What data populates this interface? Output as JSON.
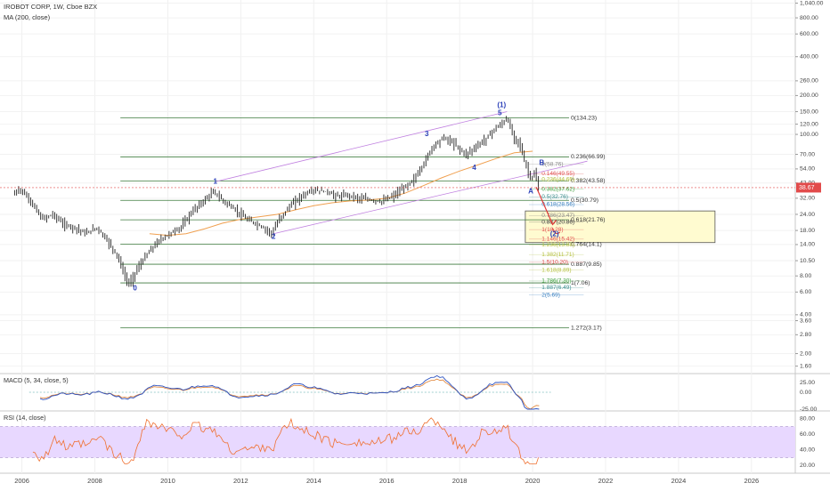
{
  "header": {
    "symbol_line": "IROBOT CORP, 1W, Cboe BZX",
    "ma_line": "MA (200, close)"
  },
  "price_axis": {
    "ticks": [
      "1,040.00",
      "800.00",
      "600.00",
      "400.00",
      "260.00",
      "200.00",
      "150.00",
      "120.00",
      "100.00",
      "70.00",
      "54.00",
      "42.00",
      "32.00",
      "24.00",
      "18.00",
      "14.00",
      "10.50",
      "8.00",
      "6.00",
      "4.00",
      "3.60",
      "2.80",
      "2.00",
      "1.60"
    ],
    "last_price_label": "38.67",
    "last_price": 38.67
  },
  "time_axis": {
    "labels": [
      "2006",
      "2008",
      "2010",
      "2012",
      "2014",
      "2016",
      "2018",
      "2020",
      "2022",
      "2024",
      "2026"
    ]
  },
  "macd": {
    "label": "MACD (5, 34, close, 5)",
    "ticks": [
      "25.00",
      "0.00",
      "-25.00"
    ]
  },
  "rsi": {
    "label": "RSI (14, close)",
    "ticks": [
      "80.00",
      "60.00",
      "40.00",
      "20.00"
    ]
  },
  "chart_data": {
    "type": "line",
    "price_scale": "log",
    "ylim": [
      1.4,
      1100
    ],
    "xlim": [
      2005.4,
      2027.2
    ],
    "series": [
      {
        "name": "Price",
        "x": [
          2005.8,
          2006.0,
          2006.3,
          2006.6,
          2006.9,
          2007.2,
          2007.5,
          2007.8,
          2008.1,
          2008.4,
          2008.7,
          2008.9,
          2009.0,
          2009.2,
          2009.5,
          2009.8,
          2010.1,
          2010.4,
          2010.7,
          2011.0,
          2011.3,
          2011.6,
          2011.9,
          2012.2,
          2012.5,
          2012.8,
          2012.9,
          2013.1,
          2013.4,
          2013.7,
          2014.0,
          2014.4,
          2014.7,
          2015.0,
          2015.3,
          2015.6,
          2015.9,
          2016.2,
          2016.5,
          2016.8,
          2017.0,
          2017.3,
          2017.6,
          2017.9,
          2018.2,
          2018.5,
          2018.8,
          2019.0,
          2019.2,
          2019.35,
          2019.5,
          2019.7,
          2019.8,
          2020.0,
          2020.1,
          2020.2
        ],
        "y": [
          34,
          38,
          30,
          22,
          24,
          20,
          19,
          17,
          19,
          15,
          11,
          7.5,
          7,
          9,
          12,
          15,
          17,
          19,
          25,
          30,
          36,
          30,
          26,
          22,
          20,
          18,
          17,
          22,
          28,
          33,
          37,
          36,
          33,
          34,
          32,
          31,
          30,
          33,
          38,
          45,
          55,
          80,
          95,
          85,
          70,
          80,
          95,
          110,
          120,
          134,
          100,
          85,
          65,
          45,
          50,
          39
        ]
      },
      {
        "name": "MA (200, close)",
        "x": [
          2009.5,
          2010.0,
          2010.5,
          2011.0,
          2011.5,
          2012.0,
          2012.5,
          2013.0,
          2013.5,
          2014.0,
          2014.5,
          2015.0,
          2015.5,
          2016.0,
          2016.5,
          2017.0,
          2017.5,
          2018.0,
          2018.5,
          2019.0,
          2019.5,
          2020.0
        ],
        "y": [
          17,
          16.5,
          17,
          18.5,
          20.5,
          22,
          23,
          24,
          26,
          28,
          29.5,
          30.5,
          31,
          32,
          35,
          40,
          46,
          52,
          58,
          65,
          72,
          74
        ]
      }
    ],
    "waves": [
      {
        "label": "0",
        "x": 2009.1,
        "y": 6.4,
        "color": "#2a3fb8"
      },
      {
        "label": "1",
        "x": 2011.3,
        "y": 43,
        "color": "#2a3fb8"
      },
      {
        "label": "2",
        "x": 2012.9,
        "y": 16,
        "color": "#2a3fb8"
      },
      {
        "label": "3",
        "x": 2017.1,
        "y": 100,
        "color": "#2a3fb8"
      },
      {
        "label": "4",
        "x": 2018.4,
        "y": 55,
        "color": "#2a3fb8"
      },
      {
        "label": "5",
        "x": 2019.1,
        "y": 146,
        "color": "#2a3fb8"
      },
      {
        "label": "(1)",
        "x": 2019.15,
        "y": 168,
        "color": "#2a3fb8"
      },
      {
        "label": "A",
        "x": 2019.95,
        "y": 36,
        "color": "#2a3fb8"
      },
      {
        "label": "B",
        "x": 2020.25,
        "y": 60,
        "color": "#2a3fb8"
      },
      {
        "label": "(2)",
        "x": 2020.6,
        "y": 16.8,
        "color": "#2a3fb8"
      }
    ],
    "fib_levels": [
      {
        "label": "0(134.23)",
        "value": 134.23,
        "color": "#3c7a3c",
        "x0": 2008.7,
        "x1": 2021.0
      },
      {
        "label": "0.236(66.99)",
        "value": 66.99,
        "color": "#3c7a3c",
        "x0": 2008.7,
        "x1": 2021.0
      },
      {
        "label": "0.382(43.58)",
        "value": 43.58,
        "color": "#3c7a3c",
        "x0": 2008.7,
        "x1": 2021.0
      },
      {
        "label": "0.5(30.79)",
        "value": 30.79,
        "color": "#3c7a3c",
        "x0": 2008.7,
        "x1": 2021.0
      },
      {
        "label": "0.618(21.76)",
        "value": 21.76,
        "color": "#3c7a3c",
        "x0": 2008.7,
        "x1": 2021.0
      },
      {
        "label": "0.764(14.1)",
        "value": 14.1,
        "color": "#3c7a3c",
        "x0": 2008.7,
        "x1": 2021.0
      },
      {
        "label": "0.887(9.85)",
        "value": 9.85,
        "color": "#3c7a3c",
        "x0": 2008.7,
        "x1": 2021.0
      },
      {
        "label": "1(7.06)",
        "value": 7.06,
        "color": "#3c7a3c",
        "x0": 2008.7,
        "x1": 2021.0
      },
      {
        "label": "1.272(3.17)",
        "value": 3.17,
        "color": "#3c7a3c",
        "x0": 2008.7,
        "x1": 2021.0
      }
    ],
    "ext_levels": [
      {
        "label": "0(58.76)",
        "value": 58.76,
        "color": "#888888"
      },
      {
        "label": "0.146(49.55)",
        "value": 49.55,
        "color": "#e05050"
      },
      {
        "label": "0.236(44.65)",
        "value": 44.65,
        "color": "#b5c040"
      },
      {
        "label": "0.382(37.62)",
        "value": 37.62,
        "color": "#40a040"
      },
      {
        "label": "0.5(32.76)",
        "value": 32.76,
        "color": "#3c8c8c"
      },
      {
        "label": "0.618(28.56)",
        "value": 28.56,
        "color": "#3a80c0"
      },
      {
        "label": "0.786(23.47)",
        "value": 23.47,
        "color": "#888888"
      },
      {
        "label": "0.887(20.86)",
        "value": 20.86,
        "color": "#444444"
      },
      {
        "label": "1(18.28)",
        "value": 18.28,
        "color": "#e05050"
      },
      {
        "label": "1.146(15.42)",
        "value": 15.42,
        "color": "#e05050"
      },
      {
        "label": "1.236(13.88)",
        "value": 13.88,
        "color": "#b5c040"
      },
      {
        "label": "1.382(11.71)",
        "value": 11.71,
        "color": "#b5c040"
      },
      {
        "label": "1.5(10.20)",
        "value": 10.2,
        "color": "#e05050"
      },
      {
        "label": "1.618(8.89)",
        "value": 8.89,
        "color": "#b5c040"
      },
      {
        "label": "1.786(7.30)",
        "value": 7.3,
        "color": "#40a040"
      },
      {
        "label": "1.887(6.49)",
        "value": 6.49,
        "color": "#3c8c8c"
      },
      {
        "label": "2(5.69)",
        "value": 5.69,
        "color": "#3a80c0"
      }
    ],
    "target_box": {
      "x0": 2019.8,
      "x1": 2025.0,
      "y0": 14.5,
      "y1": 25.5,
      "color": "#fffbd0",
      "border": "#555555"
    },
    "channel_lines": [
      {
        "x0": 2011.3,
        "y0": 43,
        "x1": 2019.3,
        "y1": 150,
        "color": "#c080e0"
      },
      {
        "x0": 2012.9,
        "y0": 17,
        "x1": 2021.5,
        "y1": 62,
        "color": "#c080e0"
      }
    ],
    "colors": {
      "up": "#222222",
      "down": "#222222",
      "ma": "#f0a050",
      "macd": "#2a50c0",
      "signal": "#e08030",
      "rsi": "#f07030",
      "rsi_band": "#e8d8ff",
      "last_price": "#e24b4b",
      "arrow": "#e03030"
    }
  }
}
